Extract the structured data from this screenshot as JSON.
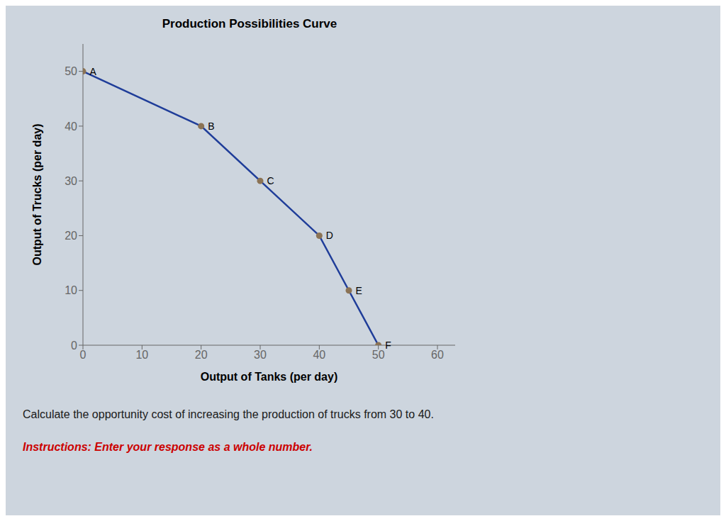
{
  "chart_data": {
    "type": "line",
    "title": "Production Possibilities Curve",
    "xlabel": "Output of Tanks (per day)",
    "ylabel": "Output of Trucks (per day)",
    "x": [
      0,
      20,
      30,
      40,
      45,
      50
    ],
    "series": [
      {
        "type": "line",
        "color": "#1f3d99",
        "values": [
          50,
          40,
          30,
          20,
          10,
          0
        ]
      },
      {
        "type": "scatter",
        "color": "#8B7355",
        "marker": "circle",
        "values": [
          50,
          40,
          30,
          20,
          10,
          0
        ]
      }
    ],
    "xlim": [
      0,
      63
    ],
    "ylim": [
      0,
      55
    ],
    "xticks": [
      0,
      10,
      20,
      30,
      40,
      50,
      60
    ],
    "yticks": [
      0,
      10,
      20,
      30,
      40,
      50
    ],
    "grid": false,
    "annotations": [
      {
        "text": "A",
        "x": 0,
        "y": 50
      },
      {
        "text": "B",
        "x": 20,
        "y": 40
      },
      {
        "text": "C",
        "x": 30,
        "y": 30
      },
      {
        "text": "D",
        "x": 40,
        "y": 20
      },
      {
        "text": "E",
        "x": 45,
        "y": 10
      },
      {
        "text": "F",
        "x": 50,
        "y": 0
      },
      {
        "text": "Calculate the opportunity cost of increasing the production of trucks from 30 to 40."
      },
      {
        "text": "Instructions: Enter your response as a whole number.",
        "color": "#cc0000"
      }
    ]
  }
}
